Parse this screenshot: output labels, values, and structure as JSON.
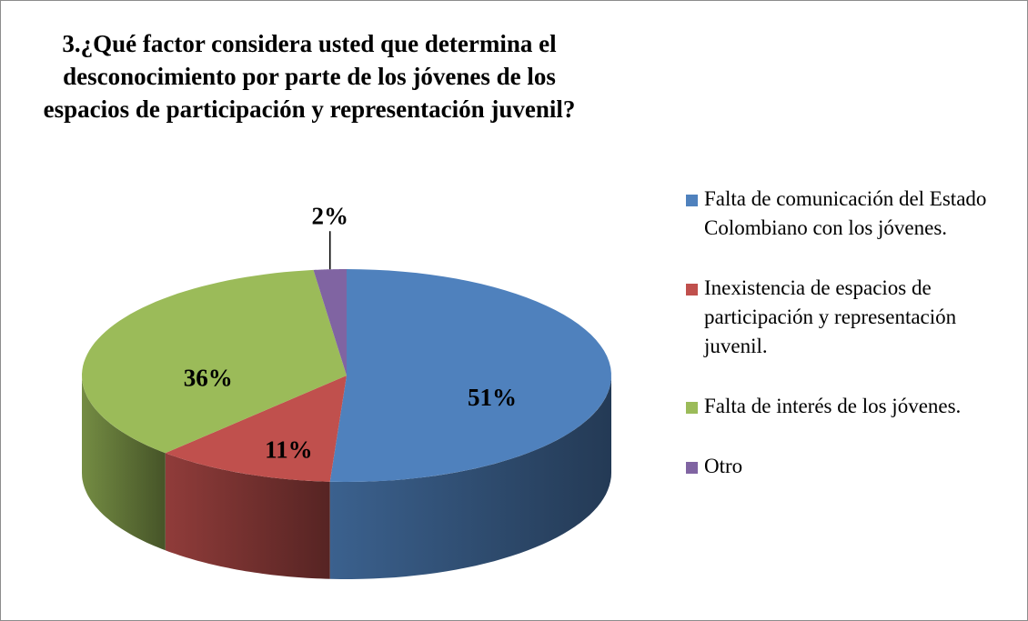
{
  "chart_data": {
    "type": "pie",
    "title": "3.¿Qué factor considera usted que determina el desconocimiento por parte de los jóvenes de los espacios de participación y representación juvenil?",
    "categories": [
      "Falta de comunicación del Estado Colombiano con los jóvenes.",
      "Inexistencia de espacios de participación y representación juvenil.",
      "Falta de interés de los jóvenes.",
      "Otro"
    ],
    "values": [
      51,
      11,
      36,
      2
    ],
    "value_labels": [
      "51%",
      "11%",
      "36%",
      "2%"
    ],
    "colors": [
      "#4f81bd",
      "#c0504d",
      "#9bbb59",
      "#8064a2"
    ],
    "legend": "right"
  }
}
